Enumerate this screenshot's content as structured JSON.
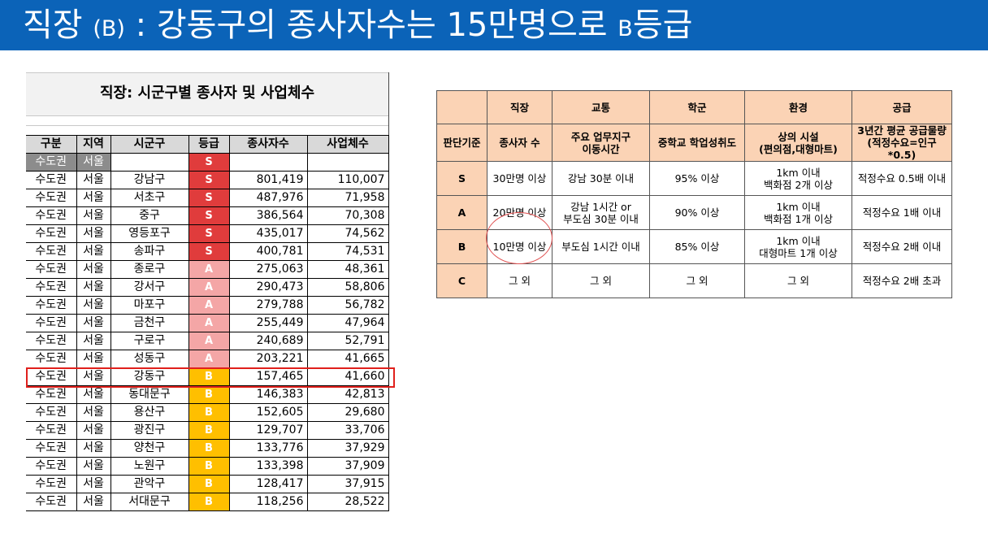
{
  "slide_title": {
    "main": "직장",
    "paren": "(B)",
    "colon": ":",
    "rest": "강동구의 종사자수는 15만명으로",
    "b": "B",
    "grade_word": "등급"
  },
  "left_table": {
    "title": "직장: 시군구별 종사자 및 사업체수",
    "headers": [
      "구분",
      "지역",
      "시군구",
      "등급",
      "종사자수",
      "사업체수"
    ],
    "summary_row": {
      "category": "수도권",
      "region": "서울",
      "grade": "S"
    },
    "rows": [
      {
        "category": "수도권",
        "region": "서울",
        "district": "강남구",
        "grade": "S",
        "workers": "801,419",
        "businesses": "110,007"
      },
      {
        "category": "수도권",
        "region": "서울",
        "district": "서초구",
        "grade": "S",
        "workers": "487,976",
        "businesses": "71,958"
      },
      {
        "category": "수도권",
        "region": "서울",
        "district": "중구",
        "grade": "S",
        "workers": "386,564",
        "businesses": "70,308"
      },
      {
        "category": "수도권",
        "region": "서울",
        "district": "영등포구",
        "grade": "S",
        "workers": "435,017",
        "businesses": "74,562"
      },
      {
        "category": "수도권",
        "region": "서울",
        "district": "송파구",
        "grade": "S",
        "workers": "400,781",
        "businesses": "74,531"
      },
      {
        "category": "수도권",
        "region": "서울",
        "district": "종로구",
        "grade": "A",
        "workers": "275,063",
        "businesses": "48,361"
      },
      {
        "category": "수도권",
        "region": "서울",
        "district": "강서구",
        "grade": "A",
        "workers": "290,473",
        "businesses": "58,806"
      },
      {
        "category": "수도권",
        "region": "서울",
        "district": "마포구",
        "grade": "A",
        "workers": "279,788",
        "businesses": "56,782"
      },
      {
        "category": "수도권",
        "region": "서울",
        "district": "금천구",
        "grade": "A",
        "workers": "255,449",
        "businesses": "47,964"
      },
      {
        "category": "수도권",
        "region": "서울",
        "district": "구로구",
        "grade": "A",
        "workers": "240,689",
        "businesses": "52,791"
      },
      {
        "category": "수도권",
        "region": "서울",
        "district": "성동구",
        "grade": "A",
        "workers": "203,221",
        "businesses": "41,665"
      },
      {
        "category": "수도권",
        "region": "서울",
        "district": "강동구",
        "grade": "B",
        "workers": "157,465",
        "businesses": "41,660"
      },
      {
        "category": "수도권",
        "region": "서울",
        "district": "동대문구",
        "grade": "B",
        "workers": "146,383",
        "businesses": "42,813"
      },
      {
        "category": "수도권",
        "region": "서울",
        "district": "용산구",
        "grade": "B",
        "workers": "152,605",
        "businesses": "29,680"
      },
      {
        "category": "수도권",
        "region": "서울",
        "district": "광진구",
        "grade": "B",
        "workers": "129,707",
        "businesses": "33,706"
      },
      {
        "category": "수도권",
        "region": "서울",
        "district": "양천구",
        "grade": "B",
        "workers": "133,776",
        "businesses": "37,929"
      },
      {
        "category": "수도권",
        "region": "서울",
        "district": "노원구",
        "grade": "B",
        "workers": "133,398",
        "businesses": "37,909"
      },
      {
        "category": "수도권",
        "region": "서울",
        "district": "관악구",
        "grade": "B",
        "workers": "128,417",
        "businesses": "37,915"
      },
      {
        "category": "수도권",
        "region": "서울",
        "district": "서대문구",
        "grade": "B",
        "workers": "118,256",
        "businesses": "28,522"
      }
    ],
    "highlighted_district": "강동구"
  },
  "criteria_table": {
    "col_headers": [
      "",
      "직장",
      "교통",
      "학군",
      "환경",
      "공급"
    ],
    "sub_headers": [
      "판단기준",
      "종사자 수",
      "주요 업무지구\n이동시간",
      "중학교 학업성취도",
      "상의 시설\n(편의점,대형마트)",
      "3년간 평균 공급물량\n(적정수요=인구*0.5)"
    ],
    "rows": [
      {
        "grade": "S",
        "job": "30만명 이상",
        "traffic": "강남 30분 이내",
        "school": "95% 이상",
        "env": "1km 이내\n백화점 2개 이상",
        "supply": "적정수요 0.5배 이내"
      },
      {
        "grade": "A",
        "job": "20만명 이상",
        "traffic": "강남 1시간 or\n부도심 30분 이내",
        "school": "90% 이상",
        "env": "1km 이내\n백화점 1개 이상",
        "supply": "적정수요 1배 이내"
      },
      {
        "grade": "B",
        "job": "10만명 이상",
        "traffic": "부도심 1시간 이내",
        "school": "85% 이상",
        "env": "1km 이내\n대형마트 1개 이상",
        "supply": "적정수요 2배 이내"
      },
      {
        "grade": "C",
        "job": "그 외",
        "traffic": "그 외",
        "school": "그 외",
        "env": "그 외",
        "supply": "적정수요 2배 초과"
      }
    ]
  },
  "colors": {
    "header_bg": "#0b63b8",
    "grade_S": "#e03c3c",
    "grade_A": "#f4a6a6",
    "grade_B": "#ffbf00",
    "criteria_header": "#fbd3b5",
    "highlight": "#e0201c"
  }
}
